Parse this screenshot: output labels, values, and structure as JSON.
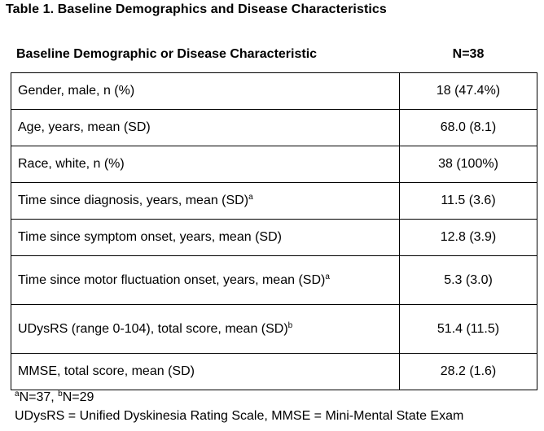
{
  "title": "Table 1. Baseline Demographics and Disease Characteristics",
  "header": {
    "characteristic": "Baseline Demographic or Disease Characteristic",
    "n": "N=38"
  },
  "rows": [
    {
      "label": "Gender, male, n (%)",
      "sup": "",
      "value": "18 (47.4%)"
    },
    {
      "label": "Age, years, mean (SD)",
      "sup": "",
      "value": "68.0 (8.1)"
    },
    {
      "label": "Race, white, n (%)",
      "sup": "",
      "value": "38 (100%)"
    },
    {
      "label": "Time since diagnosis, years, mean (SD)",
      "sup": "a",
      "value": "11.5 (3.6)"
    },
    {
      "label": "Time since symptom onset, years, mean (SD)",
      "sup": "",
      "value": "12.8 (3.9)"
    },
    {
      "label": "Time since motor fluctuation onset, years, mean (SD)",
      "sup": "a",
      "value": "5.3 (3.0)"
    },
    {
      "label": "UDysRS (range 0-104), total score, mean (SD)",
      "sup": "b",
      "value": "51.4 (11.5)"
    },
    {
      "label": "MMSE, total score, mean (SD)",
      "sup": "",
      "value": "28.2 (1.6)"
    }
  ],
  "footnotes": {
    "line1": {
      "sup_a": "a",
      "text_a": "N=37, ",
      "sup_b": "b",
      "text_b": "N=29"
    },
    "line2": "UDysRS = Unified Dyskinesia Rating Scale, MMSE = Mini-Mental State Exam"
  }
}
